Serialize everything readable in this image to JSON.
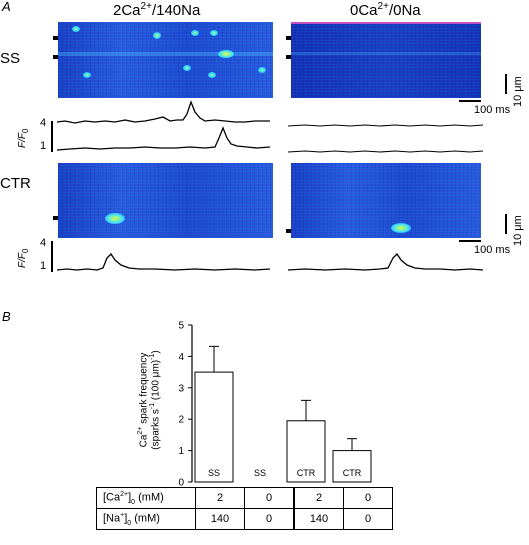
{
  "panel_a": {
    "letter": "A",
    "col1_title_pre": "2Ca",
    "col1_title_sup": "2+",
    "col1_title_post": "/140Na",
    "col2_title_pre": "0Ca",
    "col2_title_sup": "2+",
    "col2_title_post": "/0Na",
    "row1_label": "SS",
    "row2_label": "CTR",
    "ff_label_main": "F/F",
    "ff_label_sub": "0",
    "ff_tick_high": "4",
    "ff_tick_low": "1",
    "scale_spatial": "10 μm",
    "scale_time": "100 ms"
  },
  "panel_b": {
    "letter": "B",
    "chart_data": {
      "type": "bar",
      "categories": [
        "SS",
        "SS",
        "CTR",
        "CTR"
      ],
      "bar_labels": [
        "SS",
        "SS",
        "CTR",
        "CTR"
      ],
      "values": [
        3.5,
        0,
        1.95,
        1.0
      ],
      "errors": [
        0.82,
        0,
        0.65,
        0.38
      ],
      "ylim": [
        0,
        5
      ],
      "yticks": [
        "0",
        "1",
        "2",
        "3",
        "4",
        "5"
      ],
      "ylabel_line1_pre": "Ca",
      "ylabel_line1_sup": "2+",
      "ylabel_line1_post": " spark frequency",
      "ylabel_line2_pre": "(sparks s",
      "ylabel_line2_sup1": "-1",
      "ylabel_line2_mid": " (100 μm)",
      "ylabel_line2_sup2": "-1",
      "ylabel_line2_post": ")",
      "bar_fill": "#ffffff",
      "bar_stroke": "#000000"
    },
    "table": {
      "row1_label_pre": "[Ca",
      "row1_label_sup": "2+",
      "row1_label_mid": "]",
      "row1_label_sub": "0",
      "row1_label_post": " (mM)",
      "row1_values": [
        "2",
        "0",
        "2",
        "0"
      ],
      "row2_label_pre": "[Na",
      "row2_label_sup": "+",
      "row2_label_mid": "]",
      "row2_label_sub": "0",
      "row2_label_post": " (mM)",
      "row2_values": [
        "140",
        "0",
        "140",
        "0"
      ]
    }
  }
}
